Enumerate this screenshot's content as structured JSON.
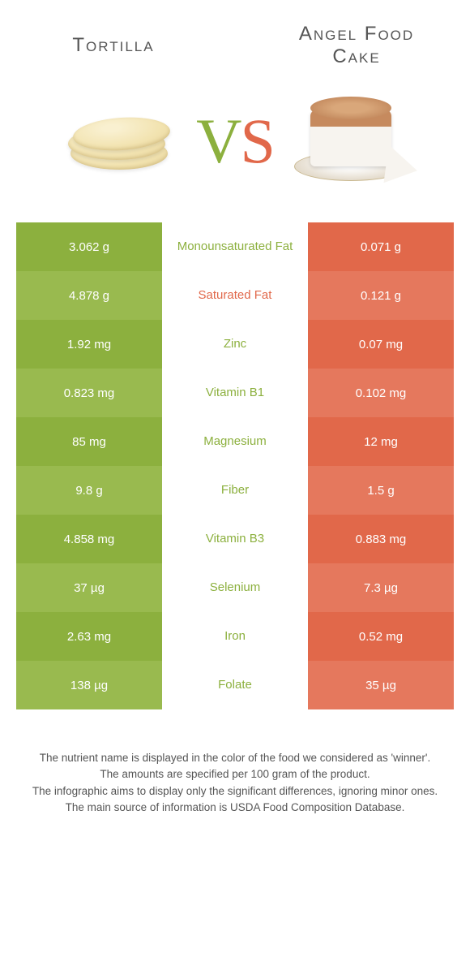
{
  "header": {
    "left_title": "Tortilla",
    "right_title": "Angel Food Cake",
    "vs_v": "V",
    "vs_s": "S"
  },
  "colors": {
    "left_shade_a": "#8cb03e",
    "left_shade_b": "#99ba4f",
    "right_shade_a": "#e1684a",
    "right_shade_b": "#e5785d",
    "nutrient_winner_color": "#8cb03e"
  },
  "rows": [
    {
      "left": "3.062 g",
      "nutrient": "Monounsaturated Fat",
      "right": "0.071 g",
      "winner": "left"
    },
    {
      "left": "4.878 g",
      "nutrient": "Saturated Fat",
      "right": "0.121 g",
      "winner": "right"
    },
    {
      "left": "1.92 mg",
      "nutrient": "Zinc",
      "right": "0.07 mg",
      "winner": "left"
    },
    {
      "left": "0.823 mg",
      "nutrient": "Vitamin B1",
      "right": "0.102 mg",
      "winner": "left"
    },
    {
      "left": "85 mg",
      "nutrient": "Magnesium",
      "right": "12 mg",
      "winner": "left"
    },
    {
      "left": "9.8 g",
      "nutrient": "Fiber",
      "right": "1.5 g",
      "winner": "left"
    },
    {
      "left": "4.858 mg",
      "nutrient": "Vitamin B3",
      "right": "0.883 mg",
      "winner": "left"
    },
    {
      "left": "37 µg",
      "nutrient": "Selenium",
      "right": "7.3 µg",
      "winner": "left"
    },
    {
      "left": "2.63 mg",
      "nutrient": "Iron",
      "right": "0.52 mg",
      "winner": "left"
    },
    {
      "left": "138 µg",
      "nutrient": "Folate",
      "right": "35 µg",
      "winner": "left"
    }
  ],
  "footer": {
    "line1": "The nutrient name is displayed in the color of the food we considered as 'winner'.",
    "line2": "The amounts are specified per 100 gram of the product.",
    "line3": "The infographic aims to display only the significant differences, ignoring minor ones.",
    "line4": "The main source of information is USDA Food Composition Database."
  }
}
